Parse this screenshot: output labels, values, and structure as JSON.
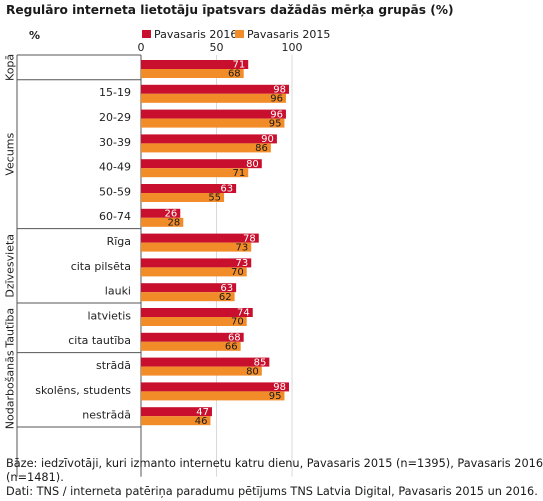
{
  "title": "Regulāro interneta lietotāju īpatsvars dažādās mērķa grupās (%)",
  "unit_label": "%",
  "colors": {
    "series_2016": "#c8102e",
    "series_2015": "#f28c28",
    "grid": "#d9d9d9",
    "axis": "#555555"
  },
  "chart_data": {
    "type": "bar",
    "orientation": "horizontal",
    "xlim": [
      0,
      100
    ],
    "xticks": [
      0,
      50,
      100
    ],
    "grid": true,
    "legend_position": "top",
    "series": [
      {
        "name": "Pavasaris 2016",
        "values": [
          71,
          98,
          96,
          90,
          80,
          63,
          26,
          78,
          73,
          63,
          74,
          68,
          85,
          98,
          47
        ]
      },
      {
        "name": "Pavasaris 2015",
        "values": [
          68,
          96,
          95,
          86,
          71,
          55,
          28,
          73,
          70,
          62,
          70,
          66,
          80,
          95,
          46
        ]
      }
    ],
    "groups": [
      {
        "name": "Kopā",
        "categories": [
          ""
        ]
      },
      {
        "name": "Vecums",
        "categories": [
          "15-19",
          "20-29",
          "30-39",
          "40-49",
          "50-59",
          "60-74"
        ]
      },
      {
        "name": "Dzīvesvieta",
        "categories": [
          "Rīga",
          "cita pilsēta",
          "lauki"
        ]
      },
      {
        "name": "Tautība",
        "categories": [
          "latvietis",
          "cita tautība"
        ]
      },
      {
        "name": "Nodarbošanās",
        "categories": [
          "strādā",
          "skolēns, students",
          "nestrādā"
        ]
      }
    ]
  },
  "footnote": {
    "line1": "Bāze: iedzīvotāji, kuri izmanto internetu katru dienu, Pavasaris 2015 (n=1395), Pavasaris 2016",
    "line2": "(n=1481).",
    "line3": "Dati: TNS / interneta patēriņa paradumu pētījums TNS Latvia Digital, Pavasaris 2015 un 2016."
  }
}
